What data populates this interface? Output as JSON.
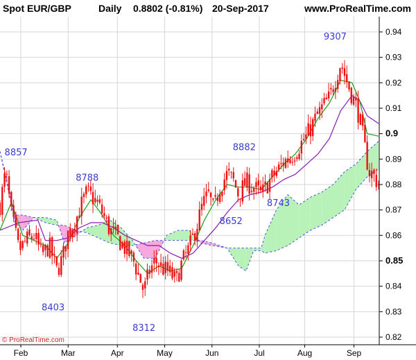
{
  "header": {
    "title": "Spot EUR/GBP",
    "period": "Daily",
    "last": "0.8802 (-0.81%)",
    "date": "20-Sep-2017",
    "site": "www.ProRealTime.com"
  },
  "credit": "© ProRealTime.com",
  "colors": {
    "candle": "#ee1111",
    "tenkan": "#16a016",
    "kijun": "#8a1ab3",
    "cloud_bull": "#b9f2b9",
    "cloud_bear": "#f7a8dc",
    "span_line": "#4455dd",
    "grid": "#d6d6d6"
  },
  "chart_data": {
    "type": "candlestick",
    "indicator": "ichimoku",
    "ylim": [
      0.817,
      0.946
    ],
    "y_ticks": [
      {
        "value": 0.82,
        "label": "0.82",
        "bold": false
      },
      {
        "value": 0.83,
        "label": "0.83",
        "bold": false
      },
      {
        "value": 0.84,
        "label": "0.84",
        "bold": false
      },
      {
        "value": 0.85,
        "label": "0.85",
        "bold": true
      },
      {
        "value": 0.86,
        "label": "0.86",
        "bold": false
      },
      {
        "value": 0.87,
        "label": "0.87",
        "bold": false
      },
      {
        "value": 0.88,
        "label": "0.88",
        "bold": false
      },
      {
        "value": 0.89,
        "label": "0.89",
        "bold": false
      },
      {
        "value": 0.9,
        "label": "0.9",
        "bold": true
      },
      {
        "value": 0.91,
        "label": "0.91",
        "bold": false
      },
      {
        "value": 0.92,
        "label": "0.92",
        "bold": false
      },
      {
        "value": 0.93,
        "label": "0.93",
        "bold": false
      },
      {
        "value": 0.94,
        "label": "0.94",
        "bold": false
      }
    ],
    "x_ticks": [
      {
        "label": "Feb",
        "t": 0.055
      },
      {
        "label": "Mar",
        "t": 0.18
      },
      {
        "label": "Apr",
        "t": 0.31
      },
      {
        "label": "May",
        "t": 0.435
      },
      {
        "label": "Jun",
        "t": 0.56
      },
      {
        "label": "Jul",
        "t": 0.685
      },
      {
        "label": "Aug",
        "t": 0.805
      },
      {
        "label": "Sep",
        "t": 0.935
      }
    ],
    "close_path": [
      [
        0.0,
        0.872
      ],
      [
        0.015,
        0.885
      ],
      [
        0.03,
        0.868
      ],
      [
        0.05,
        0.854
      ],
      [
        0.07,
        0.858
      ],
      [
        0.09,
        0.86
      ],
      [
        0.11,
        0.852
      ],
      [
        0.13,
        0.856
      ],
      [
        0.15,
        0.846
      ],
      [
        0.165,
        0.851
      ],
      [
        0.18,
        0.861
      ],
      [
        0.2,
        0.866
      ],
      [
        0.215,
        0.872
      ],
      [
        0.23,
        0.877
      ],
      [
        0.25,
        0.874
      ],
      [
        0.27,
        0.869
      ],
      [
        0.29,
        0.862
      ],
      [
        0.31,
        0.859
      ],
      [
        0.33,
        0.855
      ],
      [
        0.35,
        0.851
      ],
      [
        0.365,
        0.845
      ],
      [
        0.38,
        0.838
      ],
      [
        0.395,
        0.846
      ],
      [
        0.41,
        0.85
      ],
      [
        0.43,
        0.847
      ],
      [
        0.45,
        0.845
      ],
      [
        0.465,
        0.842
      ],
      [
        0.48,
        0.849
      ],
      [
        0.5,
        0.855
      ],
      [
        0.52,
        0.864
      ],
      [
        0.535,
        0.872
      ],
      [
        0.55,
        0.876
      ],
      [
        0.565,
        0.87
      ],
      [
        0.58,
        0.879
      ],
      [
        0.6,
        0.884
      ],
      [
        0.615,
        0.882
      ],
      [
        0.63,
        0.876
      ],
      [
        0.65,
        0.881
      ],
      [
        0.67,
        0.879
      ],
      [
        0.69,
        0.876
      ],
      [
        0.71,
        0.881
      ],
      [
        0.73,
        0.885
      ],
      [
        0.75,
        0.889
      ],
      [
        0.77,
        0.891
      ],
      [
        0.79,
        0.895
      ],
      [
        0.81,
        0.899
      ],
      [
        0.83,
        0.905
      ],
      [
        0.85,
        0.91
      ],
      [
        0.87,
        0.914
      ],
      [
        0.885,
        0.921
      ],
      [
        0.9,
        0.928
      ],
      [
        0.915,
        0.921
      ],
      [
        0.93,
        0.915
      ],
      [
        0.945,
        0.909
      ],
      [
        0.955,
        0.902
      ],
      [
        0.965,
        0.893
      ],
      [
        0.975,
        0.885
      ],
      [
        0.985,
        0.884
      ],
      [
        1.0,
        0.8802
      ]
    ],
    "tenkan": [
      [
        0.0,
        0.862
      ],
      [
        0.03,
        0.873
      ],
      [
        0.06,
        0.86
      ],
      [
        0.09,
        0.858
      ],
      [
        0.12,
        0.856
      ],
      [
        0.15,
        0.851
      ],
      [
        0.18,
        0.857
      ],
      [
        0.21,
        0.867
      ],
      [
        0.24,
        0.874
      ],
      [
        0.27,
        0.868
      ],
      [
        0.3,
        0.86
      ],
      [
        0.33,
        0.856
      ],
      [
        0.36,
        0.85
      ],
      [
        0.39,
        0.845
      ],
      [
        0.42,
        0.848
      ],
      [
        0.45,
        0.846
      ],
      [
        0.48,
        0.847
      ],
      [
        0.51,
        0.856
      ],
      [
        0.54,
        0.866
      ],
      [
        0.57,
        0.874
      ],
      [
        0.6,
        0.88
      ],
      [
        0.63,
        0.879
      ],
      [
        0.66,
        0.879
      ],
      [
        0.69,
        0.878
      ],
      [
        0.72,
        0.883
      ],
      [
        0.75,
        0.888
      ],
      [
        0.78,
        0.892
      ],
      [
        0.81,
        0.898
      ],
      [
        0.84,
        0.906
      ],
      [
        0.87,
        0.912
      ],
      [
        0.9,
        0.921
      ],
      [
        0.93,
        0.92
      ],
      [
        0.95,
        0.913
      ],
      [
        0.97,
        0.9
      ],
      [
        1.0,
        0.899
      ]
    ],
    "kijun": [
      [
        0.0,
        0.862
      ],
      [
        0.05,
        0.865
      ],
      [
        0.1,
        0.866
      ],
      [
        0.12,
        0.858
      ],
      [
        0.15,
        0.858
      ],
      [
        0.18,
        0.859
      ],
      [
        0.21,
        0.863
      ],
      [
        0.24,
        0.865
      ],
      [
        0.27,
        0.865
      ],
      [
        0.3,
        0.863
      ],
      [
        0.33,
        0.86
      ],
      [
        0.36,
        0.858
      ],
      [
        0.39,
        0.856
      ],
      [
        0.42,
        0.856
      ],
      [
        0.45,
        0.853
      ],
      [
        0.48,
        0.851
      ],
      [
        0.51,
        0.853
      ],
      [
        0.54,
        0.858
      ],
      [
        0.57,
        0.863
      ],
      [
        0.6,
        0.869
      ],
      [
        0.63,
        0.874
      ],
      [
        0.66,
        0.876
      ],
      [
        0.69,
        0.877
      ],
      [
        0.72,
        0.879
      ],
      [
        0.75,
        0.882
      ],
      [
        0.78,
        0.884
      ],
      [
        0.81,
        0.888
      ],
      [
        0.84,
        0.892
      ],
      [
        0.87,
        0.898
      ],
      [
        0.9,
        0.909
      ],
      [
        0.93,
        0.915
      ],
      [
        0.95,
        0.913
      ],
      [
        0.97,
        0.907
      ],
      [
        1.0,
        0.904
      ]
    ],
    "cloud": {
      "x": [
        0.0,
        0.04,
        0.06,
        0.09,
        0.12,
        0.15,
        0.17,
        0.2,
        0.23,
        0.26,
        0.29,
        0.32,
        0.35,
        0.38,
        0.41,
        0.44,
        0.47,
        0.5,
        0.53,
        0.56,
        0.6,
        0.63,
        0.65,
        0.67,
        0.69,
        0.7,
        0.73,
        0.76,
        0.79,
        0.82,
        0.85,
        0.88,
        0.91,
        0.94,
        0.97,
        1.0
      ],
      "span_a": [
        0.893,
        0.865,
        0.862,
        0.867,
        0.867,
        0.866,
        0.857,
        0.86,
        0.863,
        0.864,
        0.866,
        0.863,
        0.858,
        0.851,
        0.851,
        0.86,
        0.862,
        0.862,
        0.857,
        0.856,
        0.855,
        0.855,
        0.855,
        0.855,
        0.855,
        0.86,
        0.87,
        0.876,
        0.872,
        0.875,
        0.877,
        0.88,
        0.885,
        0.888,
        0.893,
        0.897
      ],
      "span_b": [
        0.893,
        0.868,
        0.868,
        0.867,
        0.865,
        0.864,
        0.864,
        0.862,
        0.861,
        0.859,
        0.857,
        0.856,
        0.856,
        0.857,
        0.858,
        0.858,
        0.858,
        0.858,
        0.858,
        0.857,
        0.855,
        0.848,
        0.846,
        0.854,
        0.854,
        0.853,
        0.854,
        0.856,
        0.859,
        0.862,
        0.864,
        0.867,
        0.87,
        0.878,
        0.883,
        0.886
      ]
    },
    "annotations": [
      {
        "text": "8857",
        "t": 0.012,
        "y": 0.8915
      },
      {
        "text": "8788",
        "t": 0.2,
        "y": 0.8815
      },
      {
        "text": "8403",
        "t": 0.11,
        "y": 0.8305
      },
      {
        "text": "8312",
        "t": 0.35,
        "y": 0.8225
      },
      {
        "text": "8882",
        "t": 0.615,
        "y": 0.8935
      },
      {
        "text": "8652",
        "t": 0.58,
        "y": 0.8645
      },
      {
        "text": "8743",
        "t": 0.705,
        "y": 0.8715
      },
      {
        "text": "9307",
        "t": 0.855,
        "y": 0.937
      }
    ]
  }
}
